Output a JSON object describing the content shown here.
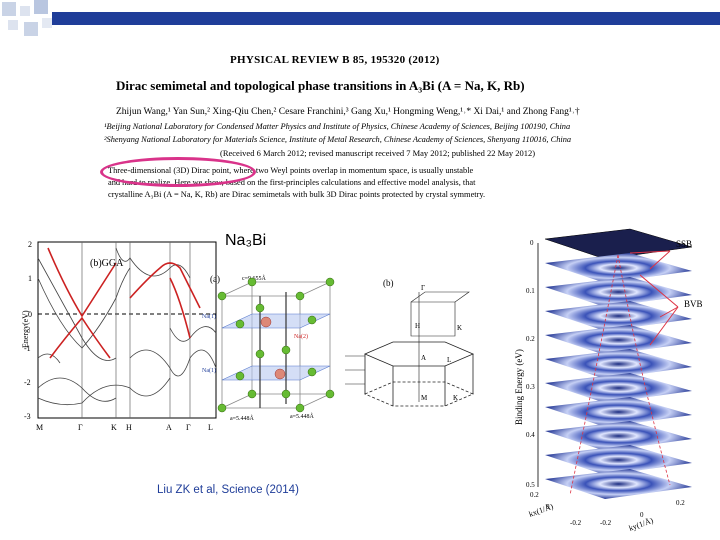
{
  "paper": {
    "journal": "PHYSICAL REVIEW B 85, 195320 (2012)",
    "title": "Dirac semimetal and topological phase transitions in A₃Bi (A = Na, K, Rb)",
    "authors": "Zhijun Wang,¹ Yan Sun,² Xing-Qiu Chen,² Cesare Franchini,³ Gang Xu,¹ Hongming Weng,¹˒* Xi Dai,¹ and Zhong Fang¹˒†",
    "affiliation_1": "¹Beijing National Laboratory for Condensed Matter Physics and Institute of Physics, Chinese Academy of Sciences, Beijing 100190, China",
    "affiliation_2": "²Shenyang National Laboratory for Materials Science, Institute of Metal Research, Chinese Academy of Sciences, Shenyang 110016, China",
    "received": "(Received 6 March 2012; revised manuscript received 7 May 2012; published 22 May 2012)",
    "abstract_1": "Three-dimensional (3D) Dirac point, where two Weyl points overlap in momentum space, is usually unstable",
    "abstract_2": "and hard to realize. Here we show, based on the first-principles calculations and effective model analysis, that",
    "abstract_3": "crystalline A₃Bi (A = Na, K, Rb) are Dirac semimetals with bulk 3D Dirac points protected by crystal symmetry."
  },
  "material_label": "Na₃Bi",
  "citation": "Liu ZK et al,  Science (2014)",
  "band_plot": {
    "ylabel": "Energy(eV)",
    "yticks": [
      "2",
      "1",
      "0",
      "-1",
      "-2",
      "-3"
    ],
    "xticks": [
      "M",
      "Γ",
      "K",
      "H",
      "A",
      "Γ",
      "L"
    ],
    "label": "(b)GGA"
  },
  "crystal": {
    "label": "(a)",
    "c_param": "c=9.655Å",
    "a_param": "a=5.448Å",
    "atoms": [
      "Na(1)",
      "Na(2)",
      "Na(1)"
    ]
  },
  "bz": {
    "label": "(b)",
    "points": [
      "Γ",
      "H",
      "K",
      "A",
      "L",
      "M",
      "K"
    ]
  },
  "arpes": {
    "ylabel": "Binding Energy (eV)",
    "yticks": [
      "0",
      "0.1",
      "0.2",
      "0.3",
      "0.4",
      "0.5"
    ],
    "kx_label": "kx(1/Å)",
    "ky_label": "ky(1/Å)",
    "kx_ticks": [
      "0.2",
      "0",
      "-0.2"
    ],
    "ky_ticks": [
      "-0.2",
      "0",
      "0.2"
    ],
    "ssb": "SSB",
    "bvb": "BVB"
  },
  "colors": {
    "top_bar": "#1f3d99",
    "highlight": "#d9338a",
    "band_red": "#cc2222",
    "citation": "#1f3d99"
  }
}
